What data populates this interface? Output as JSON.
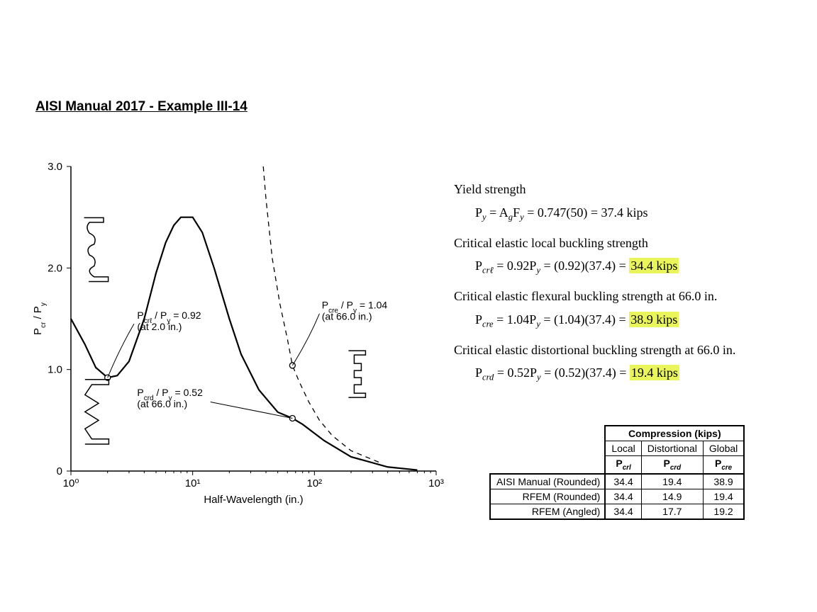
{
  "title": "AISI Manual 2017 - Example III-14",
  "chart": {
    "type": "line",
    "xlabel": "Half-Wavelength (in.)",
    "ylabel": "Pcr / Py",
    "ylim": [
      0,
      3.0
    ],
    "yticks": [
      0,
      1.0,
      2.0,
      3.0
    ],
    "xscale": "log",
    "xlim": [
      1,
      1000
    ],
    "xticks_labels": [
      "10⁰",
      "10¹",
      "10²",
      "10³"
    ],
    "axis_color": "#000000",
    "background_color": "#ffffff",
    "solid_line_width": 2.2,
    "dash_line_width": 1.3,
    "font_family": "Arial",
    "label_fontsize": 14,
    "solid_curve_points": [
      [
        1.0,
        1.5
      ],
      [
        1.3,
        1.25
      ],
      [
        1.6,
        1.02
      ],
      [
        2.0,
        0.92
      ],
      [
        2.4,
        0.94
      ],
      [
        3.0,
        1.08
      ],
      [
        4.0,
        1.5
      ],
      [
        5.0,
        1.95
      ],
      [
        6.0,
        2.25
      ],
      [
        7.0,
        2.42
      ],
      [
        8.0,
        2.5
      ],
      [
        10.0,
        2.5
      ],
      [
        12.0,
        2.35
      ],
      [
        15.0,
        2.0
      ],
      [
        20.0,
        1.5
      ],
      [
        25.0,
        1.15
      ],
      [
        35.0,
        0.8
      ],
      [
        50.0,
        0.58
      ],
      [
        66.0,
        0.52
      ],
      [
        80.0,
        0.46
      ],
      [
        120.0,
        0.3
      ],
      [
        200.0,
        0.14
      ],
      [
        400.0,
        0.04
      ],
      [
        700.0,
        0.01
      ]
    ],
    "dashed_curve_points": [
      [
        38,
        3.0
      ],
      [
        40,
        2.68
      ],
      [
        45,
        2.1
      ],
      [
        52,
        1.65
      ],
      [
        60,
        1.3
      ],
      [
        66,
        1.04
      ],
      [
        75,
        0.88
      ],
      [
        90,
        0.68
      ],
      [
        110,
        0.5
      ],
      [
        140,
        0.35
      ],
      [
        200,
        0.2
      ],
      [
        350,
        0.08
      ]
    ],
    "marker_points": [
      {
        "x": 2.0,
        "y": 0.92
      },
      {
        "x": 66.0,
        "y": 0.52
      },
      {
        "x": 66.0,
        "y": 1.04
      }
    ],
    "annotations": {
      "crl": {
        "label_line1": "Pcrℓ / Py = 0.92",
        "label_line2": "(at 2.0 in.)"
      },
      "crd": {
        "label_line1": "Pcrd / Py = 0.52",
        "label_line2": "(at 66.0 in.)"
      },
      "cre": {
        "label_line1": "Pcre / Py = 1.04",
        "label_line2": "(at 66.0 in.)"
      }
    }
  },
  "equations": {
    "yield_title": "Yield strength",
    "yield_eq": "Py = AgFy = 0.747(50) = 37.4 kips",
    "local_title": "Critical elastic local buckling strength",
    "local_eq_pre": "Pcrℓ = 0.92Py = (0.92)(37.4) = ",
    "local_eq_hl": "34.4 kips",
    "flex_title": "Critical elastic flexural buckling strength at 66.0 in.",
    "flex_eq_pre": "Pcre = 1.04Py = (1.04)(37.4) = ",
    "flex_eq_hl": "38.9 kips",
    "dist_title": "Critical elastic distortional buckling strength at 66.0 in.",
    "dist_eq_pre": "Pcrd = 0.52Py = (0.52)(37.4) = ",
    "dist_eq_hl": "19.4 kips"
  },
  "table": {
    "title": "Compression (kips)",
    "cols": [
      "Local",
      "Distortional",
      "Global"
    ],
    "sym_cols": [
      "Pcrl",
      "Pcrd",
      "Pcre"
    ],
    "rows": [
      {
        "label": "AISI Manual (Rounded)",
        "vals": [
          "34.4",
          "19.4",
          "38.9"
        ]
      },
      {
        "label": "RFEM (Rounded)",
        "vals": [
          "34.4",
          "14.9",
          "19.4"
        ]
      },
      {
        "label": "RFEM (Angled)",
        "vals": [
          "34.4",
          "17.7",
          "19.2"
        ]
      }
    ]
  }
}
